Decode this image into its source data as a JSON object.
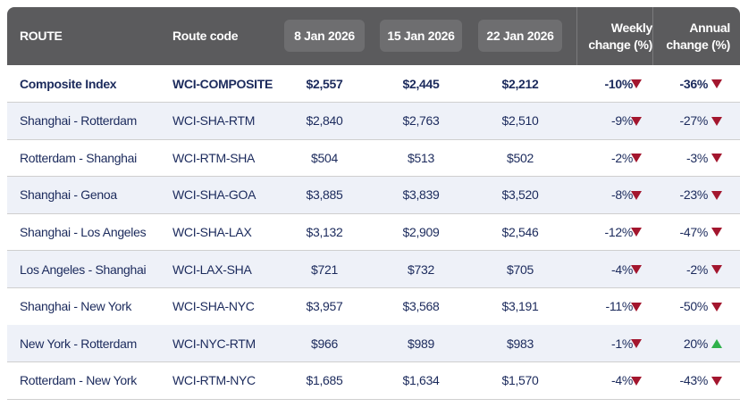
{
  "table": {
    "header": [
      "ROUTE",
      "Route code",
      "8 Jan 2026",
      "15 Jan 2026",
      "22 Jan 2026",
      "Weekly change (%)",
      "Annual change (%)"
    ],
    "rows": [
      [
        "Composite Index",
        "WCI-COMPOSITE",
        "$2,557",
        "$2,445",
        "$2,212",
        "-10%",
        "-36%"
      ],
      [
        "Shanghai - Rotterdam",
        "WCI-SHA-RTM",
        "$2,840",
        "$2,763",
        "$2,510",
        "-9%",
        "-27%"
      ],
      [
        "Rotterdam - Shanghai",
        "WCI-RTM-SHA",
        "$504",
        "$513",
        "$502",
        "-2%",
        "-3%"
      ],
      [
        "Shanghai - Genoa",
        "WCI-SHA-GOA",
        "$3,885",
        "$3,839",
        "$3,520",
        "-8%",
        "-23%"
      ],
      [
        "Shanghai - Los Angeles",
        "WCI-SHA-LAX",
        "$3,132",
        "$2,909",
        "$2,546",
        "-12%",
        "-47%"
      ],
      [
        "Los Angeles - Shanghai",
        "WCI-LAX-SHA",
        "$721",
        "$732",
        "$705",
        "-4%",
        "-2%"
      ],
      [
        "Shanghai - New York",
        "WCI-SHA-NYC",
        "$3,957",
        "$3,568",
        "$3,191",
        "-11%",
        "-50%"
      ],
      [
        "New York - Rotterdam",
        "WCI-NYC-RTM",
        "$966",
        "$989",
        "$983",
        "-1%",
        "20%"
      ],
      [
        "Rotterdam - New York",
        "WCI-RTM-NYC",
        "$1,685",
        "$1,634",
        "$1,570",
        "-4%",
        "-43%"
      ]
    ]
  }
}
